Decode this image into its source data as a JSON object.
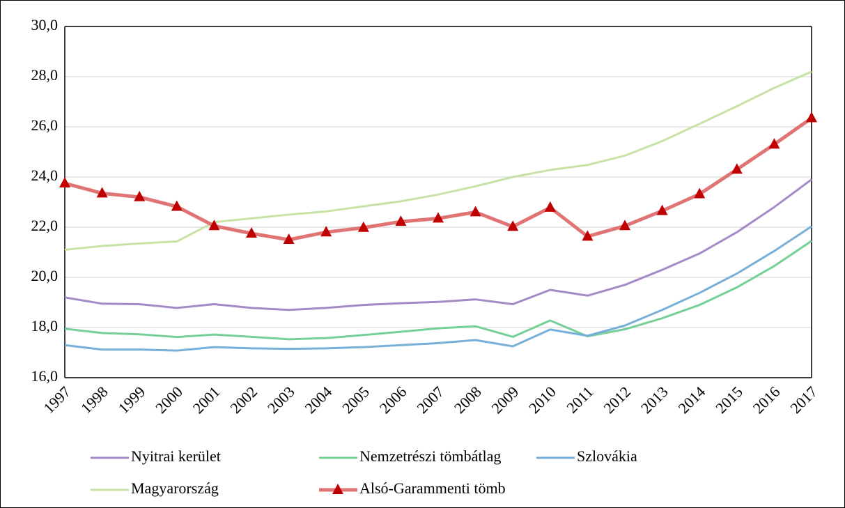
{
  "chart_data": {
    "type": "line",
    "categories": [
      "1997",
      "1998",
      "1999",
      "2000",
      "2001",
      "2002",
      "2003",
      "2004",
      "2005",
      "2006",
      "2007",
      "2008",
      "2009",
      "2010",
      "2011",
      "2012",
      "2013",
      "2014",
      "2015",
      "2016",
      "2017"
    ],
    "ylim": [
      16,
      30
    ],
    "yticks": [
      {
        "value": 16,
        "label": "16,0"
      },
      {
        "value": 18,
        "label": "18,0"
      },
      {
        "value": 20,
        "label": "20,0"
      },
      {
        "value": 22,
        "label": "22,0"
      },
      {
        "value": 24,
        "label": "24,0"
      },
      {
        "value": 26,
        "label": "26,0"
      },
      {
        "value": 28,
        "label": "28,0"
      },
      {
        "value": 30,
        "label": "30,0"
      }
    ],
    "grid": true,
    "legend": "bottom",
    "series": [
      {
        "name": "Nyitrai kerület",
        "color": "#a48ac6",
        "values": [
          19.2,
          18.95,
          18.93,
          18.78,
          18.93,
          18.78,
          18.7,
          18.78,
          18.9,
          18.97,
          19.02,
          19.12,
          18.93,
          19.5,
          19.27,
          19.7,
          20.3,
          20.95,
          21.8,
          22.8,
          23.9
        ]
      },
      {
        "name": "Nemzetrészi tömbátlag",
        "color": "#74cf98",
        "values": [
          17.95,
          17.78,
          17.73,
          17.62,
          17.72,
          17.63,
          17.53,
          17.58,
          17.7,
          17.83,
          17.97,
          18.05,
          17.63,
          18.28,
          17.65,
          17.93,
          18.37,
          18.9,
          19.6,
          20.45,
          21.45
        ]
      },
      {
        "name": "Szlovákia",
        "color": "#78afd8",
        "values": [
          17.3,
          17.12,
          17.12,
          17.08,
          17.22,
          17.17,
          17.15,
          17.17,
          17.22,
          17.3,
          17.38,
          17.5,
          17.25,
          17.92,
          17.67,
          18.08,
          18.7,
          19.38,
          20.15,
          21.05,
          22.03
        ]
      },
      {
        "name": "Magyarország",
        "color": "#c6e2a4",
        "values": [
          21.1,
          21.25,
          21.35,
          21.43,
          22.2,
          22.35,
          22.5,
          22.63,
          22.83,
          23.03,
          23.3,
          23.63,
          24.0,
          24.28,
          24.48,
          24.85,
          25.43,
          26.12,
          26.82,
          27.55,
          28.2
        ]
      },
      {
        "name": "Alsó-Garammenti  tömb",
        "color": "#e07474",
        "marker": "triangle",
        "marker_color": "#c00000",
        "values": [
          23.75,
          23.35,
          23.2,
          22.82,
          22.05,
          21.75,
          21.5,
          21.8,
          21.98,
          22.22,
          22.35,
          22.6,
          22.02,
          22.78,
          21.63,
          22.05,
          22.65,
          23.32,
          24.3,
          25.3,
          26.35
        ]
      }
    ]
  }
}
